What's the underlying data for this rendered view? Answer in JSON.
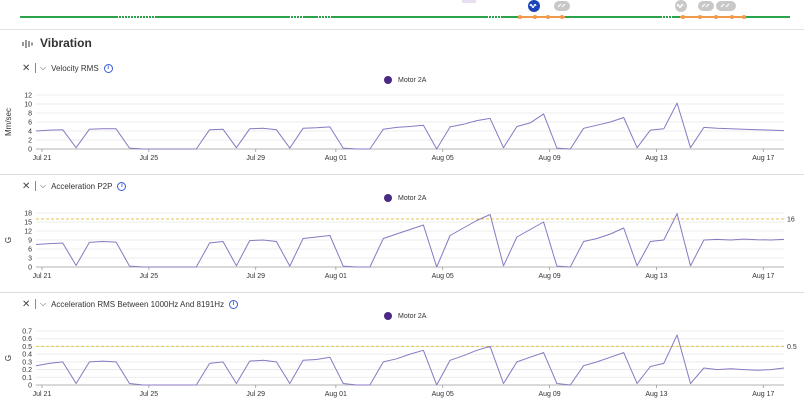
{
  "section_title": "Vibration",
  "timeline": {
    "selected_icon": "wave-icon",
    "icons": [
      "wave-icon",
      "link-icon",
      "wave-icon",
      "link-icon",
      "link-icon"
    ]
  },
  "colors": {
    "line": "#8b78c2",
    "legend": "#4a2a82",
    "threshold": "#e0c64c",
    "timeline_green": "#2aa34a",
    "timeline_orange": "#f29a4a",
    "accent": "#1a44b8"
  },
  "panels": [
    {
      "title": "Velocity RMS",
      "legend": "Motor 2A",
      "ylabel": "Mm/sec",
      "yticks": [
        "0",
        "2",
        "4",
        "6",
        "8",
        "10",
        "12"
      ],
      "threshold_label": ""
    },
    {
      "title": "Acceleration P2P",
      "legend": "Motor 2A",
      "ylabel": "G",
      "yticks": [
        "0",
        "3",
        "6",
        "9",
        "12",
        "15",
        "18"
      ],
      "threshold_label": "16"
    },
    {
      "title": "Acceleration RMS Between 1000Hz And 8191Hz",
      "legend": "Motor 2A",
      "ylabel": "G",
      "yticks": [
        "0",
        "0.1",
        "0.2",
        "0.3",
        "0.4",
        "0.5",
        "0.6",
        "0.7"
      ],
      "threshold_label": "0.5"
    }
  ],
  "chart_data": [
    {
      "type": "line",
      "title": "Velocity RMS",
      "ylabel": "Mm/sec",
      "ylim": [
        0,
        12
      ],
      "xticks": [
        "Jul 21",
        "Jul 25",
        "Jul 29",
        "Aug 01",
        "Aug 05",
        "Aug 09",
        "Aug 13",
        "Aug 17"
      ],
      "series": [
        {
          "name": "Motor 2A",
          "x": [
            0,
            0.5,
            1,
            1.5,
            2,
            2.5,
            3,
            3.5,
            4,
            4.5,
            5,
            5.5,
            6,
            6.5,
            7,
            7.5,
            8,
            8.5,
            9,
            9.5,
            10,
            10.5,
            11,
            11.5,
            12,
            12.5,
            13,
            13.5,
            14,
            14.5,
            15,
            15.5,
            16,
            16.5,
            17,
            17.5,
            18,
            18.5,
            19,
            19.5,
            20,
            20.5,
            21,
            21.5,
            22,
            22.5,
            23,
            23.5,
            24,
            24.5,
            25,
            25.5,
            26,
            26.5,
            27,
            27.5,
            28
          ],
          "y": [
            4.0,
            4.2,
            4.3,
            0.3,
            4.4,
            4.5,
            4.5,
            0.2,
            0,
            0,
            0,
            0,
            0,
            4.3,
            4.4,
            0.3,
            4.5,
            4.6,
            4.3,
            0.2,
            4.6,
            4.7,
            4.9,
            0.2,
            0,
            0,
            4.4,
            4.8,
            5.0,
            5.3,
            0,
            4.9,
            5.5,
            6.3,
            6.8,
            0.3,
            5.0,
            5.8,
            7.8,
            0.2,
            0,
            4.6,
            5.3,
            6.0,
            7.0,
            0.3,
            4.2,
            4.5,
            10.2,
            0.3,
            4.8,
            4.6,
            4.5,
            4.4,
            4.3,
            4.2,
            4.1
          ]
        }
      ],
      "threshold": null
    },
    {
      "type": "line",
      "title": "Acceleration P2P",
      "ylabel": "G",
      "ylim": [
        0,
        18
      ],
      "xticks": [
        "Jul 21",
        "Jul 25",
        "Jul 29",
        "Aug 01",
        "Aug 05",
        "Aug 09",
        "Aug 13",
        "Aug 17"
      ],
      "series": [
        {
          "name": "Motor 2A",
          "x": [
            0,
            0.5,
            1,
            1.5,
            2,
            2.5,
            3,
            3.5,
            4,
            4.5,
            5,
            5.5,
            6,
            6.5,
            7,
            7.5,
            8,
            8.5,
            9,
            9.5,
            10,
            10.5,
            11,
            11.5,
            12,
            12.5,
            13,
            13.5,
            14,
            14.5,
            15,
            15.5,
            16,
            16.5,
            17,
            17.5,
            18,
            18.5,
            19,
            19.5,
            20,
            20.5,
            21,
            21.5,
            22,
            22.5,
            23,
            23.5,
            24,
            24.5,
            25,
            25.5,
            26,
            26.5,
            27,
            27.5,
            28
          ],
          "y": [
            7.5,
            7.8,
            8.0,
            0.5,
            8.2,
            8.5,
            8.3,
            0.3,
            0,
            0,
            0,
            0,
            0,
            8.0,
            8.5,
            0.4,
            8.8,
            9.0,
            8.5,
            0.3,
            9.5,
            10.0,
            10.5,
            0.3,
            0,
            0,
            9.5,
            11.0,
            12.5,
            14.0,
            0,
            10.5,
            13.0,
            15.5,
            17.5,
            0.4,
            10.0,
            12.5,
            15.0,
            0.3,
            0,
            8.5,
            9.5,
            11.0,
            13.0,
            0.4,
            8.5,
            9.0,
            17.8,
            0.4,
            9.0,
            9.2,
            9.0,
            9.3,
            9.1,
            9.0,
            9.2
          ]
        }
      ],
      "threshold": 16
    },
    {
      "type": "line",
      "title": "Acceleration RMS Between 1000Hz And 8191Hz",
      "ylabel": "G",
      "ylim": [
        0,
        0.7
      ],
      "xticks": [
        "Jul 21",
        "Jul 25",
        "Jul 29",
        "Aug 01",
        "Aug 05",
        "Aug 09",
        "Aug 13",
        "Aug 17"
      ],
      "series": [
        {
          "name": "Motor 2A",
          "x": [
            0,
            0.5,
            1,
            1.5,
            2,
            2.5,
            3,
            3.5,
            4,
            4.5,
            5,
            5.5,
            6,
            6.5,
            7,
            7.5,
            8,
            8.5,
            9,
            9.5,
            10,
            10.5,
            11,
            11.5,
            12,
            12.5,
            13,
            13.5,
            14,
            14.5,
            15,
            15.5,
            16,
            16.5,
            17,
            17.5,
            18,
            18.5,
            19,
            19.5,
            20,
            20.5,
            21,
            21.5,
            22,
            22.5,
            23,
            23.5,
            24,
            24.5,
            25,
            25.5,
            26,
            26.5,
            27,
            27.5,
            28
          ],
          "y": [
            0.25,
            0.28,
            0.3,
            0.02,
            0.3,
            0.31,
            0.3,
            0.02,
            0,
            0,
            0,
            0,
            0,
            0.28,
            0.3,
            0.02,
            0.31,
            0.32,
            0.3,
            0.02,
            0.32,
            0.33,
            0.36,
            0.02,
            0,
            0,
            0.3,
            0.34,
            0.4,
            0.45,
            0,
            0.32,
            0.38,
            0.45,
            0.5,
            0.02,
            0.3,
            0.36,
            0.42,
            0.02,
            0,
            0.25,
            0.3,
            0.36,
            0.42,
            0.02,
            0.24,
            0.28,
            0.65,
            0.02,
            0.22,
            0.2,
            0.21,
            0.2,
            0.19,
            0.2,
            0.22
          ]
        }
      ],
      "threshold": 0.5
    }
  ]
}
